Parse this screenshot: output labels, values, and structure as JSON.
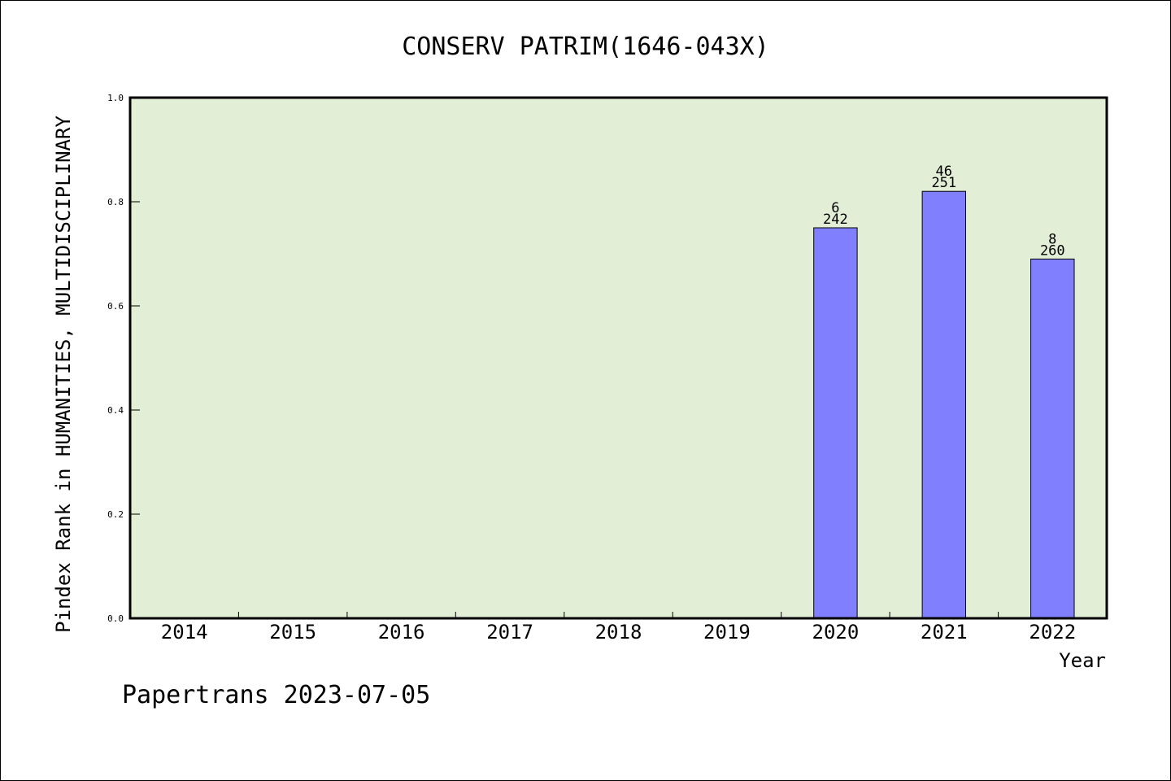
{
  "chart_data": {
    "type": "bar",
    "title": "CONSERV PATRIM(1646-043X)",
    "xlabel": "Year",
    "ylabel": "Pindex Rank in HUMANITIES, MULTIDISCIPLINARY",
    "categories": [
      "2014",
      "2015",
      "2016",
      "2017",
      "2018",
      "2019",
      "2020",
      "2021",
      "2022"
    ],
    "values": [
      null,
      null,
      null,
      null,
      null,
      null,
      0.75,
      0.82,
      0.69
    ],
    "annotations": [
      {
        "category": "2020",
        "rank": "6",
        "total": "242"
      },
      {
        "category": "2021",
        "rank": "46",
        "total": "251"
      },
      {
        "category": "2022",
        "rank": "8",
        "total": "260"
      }
    ],
    "ylim": [
      0.0,
      1.0
    ],
    "yticks": [
      "0.0",
      "0.2",
      "0.4",
      "0.6",
      "0.8",
      "1.0"
    ],
    "grid": false,
    "colors": {
      "plot_background": "#e2efd6",
      "bar": "#8080ff",
      "frame": "#000000"
    },
    "footer": "Papertrans 2023-07-05"
  }
}
